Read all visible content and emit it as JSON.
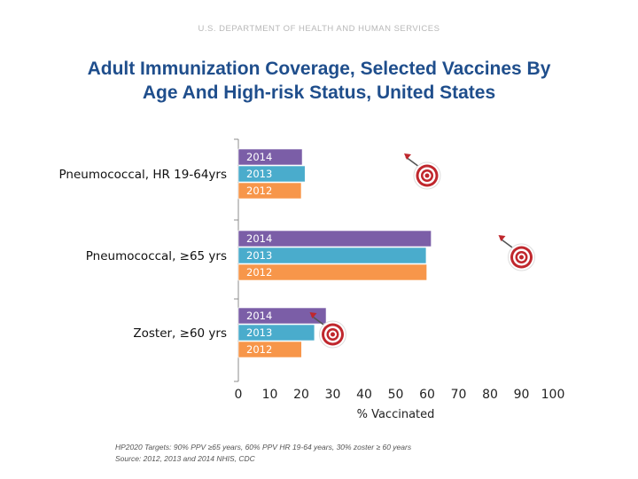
{
  "header": "U.S. DEPARTMENT OF HEALTH AND HUMAN SERVICES",
  "title_line1": "Adult Immunization Coverage, Selected Vaccines By",
  "title_line2": "Age And High-risk Status, United States",
  "footnote_line1": "HP2020 Targets: 90% PPV ≥65 years, 60% PPV HR 19-64 years, 30% zoster ≥ 60 years",
  "footnote_line2": "Source: 2012, 2013 and 2014 NHIS, CDC",
  "colors": {
    "2014": "#7b5ea7",
    "2013": "#4aaccc",
    "2012": "#f7964a",
    "target": "#c0272d"
  },
  "chart_data": {
    "type": "bar",
    "orientation": "horizontal",
    "xlabel": "% Vaccinated",
    "xlim": [
      0,
      100
    ],
    "xticks": [
      0,
      10,
      20,
      30,
      40,
      50,
      60,
      70,
      80,
      90,
      100
    ],
    "grid": false,
    "categories": [
      "Pneumococcal, HR 19-64yrs",
      "Pneumococcal, ≥65 yrs",
      "Zoster, ≥60 yrs"
    ],
    "series": [
      {
        "name": "2014",
        "values": [
          20.3,
          61.3,
          27.9
        ]
      },
      {
        "name": "2013",
        "values": [
          21.2,
          59.7,
          24.2
        ]
      },
      {
        "name": "2012",
        "values": [
          20.0,
          59.9,
          20.1
        ]
      }
    ],
    "targets": [
      60,
      90,
      30
    ],
    "target_icon": "bullseye-dart-icon"
  }
}
